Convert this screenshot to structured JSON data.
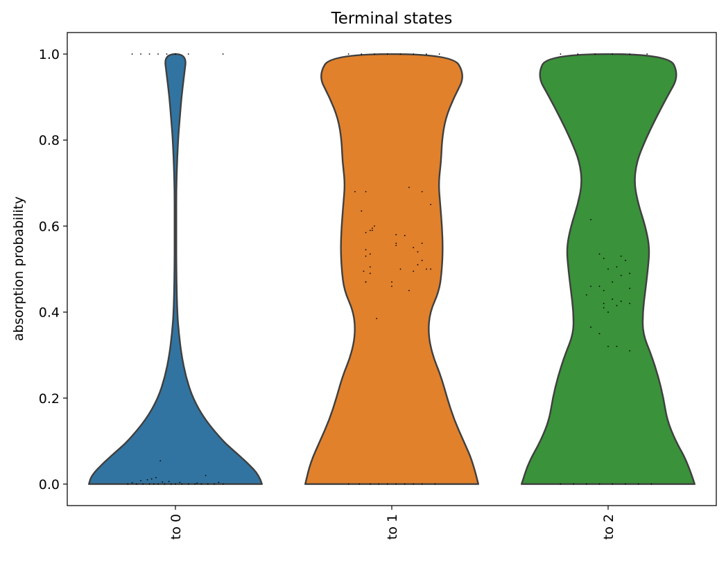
{
  "chart_data": {
    "type": "violin",
    "title": "Terminal states",
    "xlabel": "",
    "ylabel": "absorption probability",
    "ylim": [
      -0.05,
      1.05
    ],
    "y_ticks": [
      "0.0",
      "0.2",
      "0.4",
      "0.6",
      "0.8",
      "1.0"
    ],
    "y_tick_values": [
      0.0,
      0.2,
      0.4,
      0.6,
      0.8,
      1.0
    ],
    "grid": false,
    "legend": "none",
    "categories": [
      "to 0",
      "to 1",
      "to 2"
    ],
    "colors": [
      "#3274a1",
      "#e1812c",
      "#3a923a"
    ],
    "density_profiles": [
      {
        "category": "to 0",
        "y": [
          0.0,
          0.02,
          0.05,
          0.08,
          0.1,
          0.15,
          0.2,
          0.25,
          0.3,
          0.35,
          0.4,
          0.5,
          0.6,
          0.7,
          0.8,
          0.85,
          0.9,
          0.95,
          1.0
        ],
        "halfwidth": [
          1.0,
          0.97,
          0.83,
          0.66,
          0.55,
          0.34,
          0.2,
          0.12,
          0.07,
          0.04,
          0.02,
          0.01,
          0.01,
          0.01,
          0.03,
          0.05,
          0.07,
          0.1,
          0.13
        ]
      },
      {
        "category": "to 1",
        "y": [
          0.0,
          0.05,
          0.1,
          0.15,
          0.2,
          0.25,
          0.3,
          0.35,
          0.4,
          0.45,
          0.5,
          0.55,
          0.6,
          0.65,
          0.7,
          0.75,
          0.8,
          0.85,
          0.9,
          0.95,
          1.0
        ],
        "halfwidth": [
          1.0,
          0.94,
          0.83,
          0.72,
          0.64,
          0.57,
          0.47,
          0.42,
          0.44,
          0.55,
          0.58,
          0.59,
          0.58,
          0.56,
          0.54,
          0.57,
          0.58,
          0.62,
          0.72,
          0.85,
          0.7
        ]
      },
      {
        "category": "to 2",
        "y": [
          0.0,
          0.05,
          0.1,
          0.15,
          0.2,
          0.25,
          0.3,
          0.35,
          0.4,
          0.45,
          0.5,
          0.55,
          0.6,
          0.65,
          0.7,
          0.75,
          0.8,
          0.85,
          0.9,
          0.95,
          1.0
        ],
        "halfwidth": [
          1.0,
          0.92,
          0.78,
          0.68,
          0.64,
          0.58,
          0.5,
          0.4,
          0.4,
          0.43,
          0.46,
          0.48,
          0.43,
          0.35,
          0.3,
          0.33,
          0.43,
          0.55,
          0.68,
          0.82,
          0.7
        ]
      }
    ],
    "points": [
      {
        "category": "to 0",
        "jitter": [
          -0.22,
          -0.18,
          -0.15,
          -0.12,
          -0.1,
          -0.08,
          -0.05,
          -0.02,
          0.0,
          0.03,
          0.06,
          0.09,
          0.12,
          0.15,
          0.18,
          0.22,
          -0.2,
          -0.06,
          0.1,
          0.2,
          -0.16,
          -0.13,
          -0.09,
          -0.03,
          0.02,
          -0.07,
          -0.11,
          0.14,
          -0.2,
          -0.16,
          -0.12,
          -0.08,
          -0.04,
          0.0,
          0.06,
          0.22
        ],
        "y": [
          0.0,
          0.0,
          0.0,
          0.0,
          0.0,
          0.0,
          0.0,
          0.0,
          0.0,
          0.0,
          0.0,
          0.0,
          0.0,
          0.0,
          0.0,
          0.0,
          0.003,
          0.005,
          0.002,
          0.004,
          0.008,
          0.01,
          0.015,
          0.006,
          0.004,
          0.054,
          0.012,
          0.02,
          1.0,
          1.0,
          1.0,
          1.0,
          1.0,
          1.0,
          1.0,
          1.0
        ]
      },
      {
        "category": "to 1",
        "jitter": [
          -0.2,
          -0.15,
          -0.1,
          -0.06,
          -0.02,
          0.02,
          0.06,
          0.1,
          0.14,
          0.2,
          -0.2,
          -0.14,
          -0.08,
          -0.02,
          0.04,
          0.1,
          0.16,
          0.22,
          -0.17,
          -0.12,
          0.08,
          -0.14,
          -0.08,
          0.14,
          0.18,
          -0.09,
          -0.12,
          -0.1,
          0.02,
          0.06,
          0.1,
          -0.12,
          -0.12,
          -0.1,
          0.04,
          0.12,
          0.14,
          -0.1,
          -0.13,
          -0.1,
          0.0,
          0.1,
          0.08,
          -0.12,
          -0.12,
          -0.07,
          0.0,
          0.02,
          0.02,
          0.14,
          0.18,
          0.12,
          0.16,
          -0.09
        ],
        "y": [
          0.0,
          0.0,
          0.0,
          0.0,
          0.0,
          0.0,
          0.0,
          0.0,
          0.0,
          0.0,
          1.0,
          1.0,
          1.0,
          1.0,
          1.0,
          1.0,
          1.0,
          1.0,
          0.68,
          0.68,
          0.69,
          0.635,
          0.6,
          0.68,
          0.65,
          0.595,
          0.585,
          0.59,
          0.58,
          0.578,
          0.55,
          0.53,
          0.545,
          0.535,
          0.5,
          0.51,
          0.52,
          0.505,
          0.495,
          0.49,
          0.47,
          0.495,
          0.45,
          0.47,
          0.47,
          0.385,
          0.46,
          0.555,
          0.56,
          0.56,
          0.5,
          0.54,
          0.5,
          0.59
        ]
      },
      {
        "category": "to 2",
        "jitter": [
          -0.22,
          -0.16,
          -0.1,
          -0.04,
          0.02,
          0.08,
          0.14,
          0.2,
          -0.22,
          -0.14,
          -0.06,
          0.02,
          0.1,
          0.18,
          -0.08,
          -0.04,
          -0.02,
          0.04,
          0.08,
          0.1,
          0.06,
          0.0,
          -0.04,
          0.02,
          0.06,
          -0.02,
          0.06,
          0.1,
          0.02,
          -0.02,
          -0.02,
          0.04,
          0.1,
          -0.1,
          0.0,
          -0.08,
          -0.04,
          0.0,
          0.04,
          0.1,
          -0.08
        ],
        "y": [
          0.0,
          0.0,
          0.0,
          0.0,
          0.0,
          0.0,
          0.0,
          0.0,
          1.0,
          1.0,
          1.0,
          1.0,
          1.0,
          1.0,
          0.615,
          0.535,
          0.525,
          0.505,
          0.52,
          0.49,
          0.53,
          0.5,
          0.46,
          0.47,
          0.485,
          0.45,
          0.425,
          0.455,
          0.43,
          0.42,
          0.41,
          0.415,
          0.42,
          0.44,
          0.4,
          0.365,
          0.35,
          0.32,
          0.32,
          0.31,
          0.46
        ]
      }
    ]
  }
}
